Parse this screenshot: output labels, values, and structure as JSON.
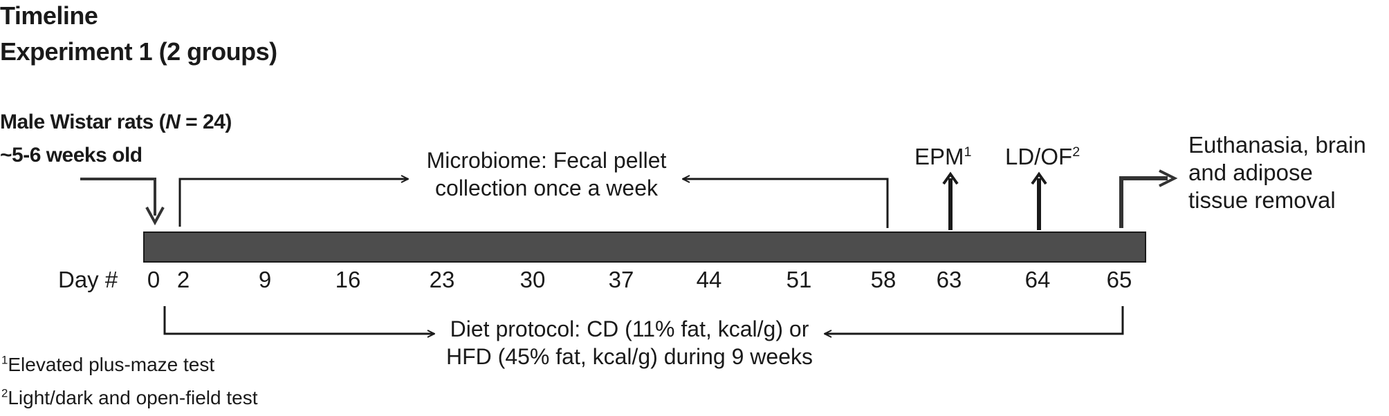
{
  "header": {
    "title": "Timeline",
    "subtitle": "Experiment 1 (2 groups)"
  },
  "subjects": {
    "line1_prefix": "Male Wistar rats (",
    "line1_n": "N",
    "line1_suffix": " = 24)",
    "line2": "~5-6 weeks old"
  },
  "microbiome": {
    "line1": "Microbiome: Fecal pellet",
    "line2": "collection once a week"
  },
  "tests": {
    "epm": {
      "label": "EPM",
      "ref": "1"
    },
    "ldof": {
      "label": "LD/OF",
      "ref": "2"
    }
  },
  "euthanasia": {
    "line1": "Euthanasia, brain",
    "line2": "and adipose",
    "line3": "tissue removal"
  },
  "axis": {
    "label": "Day #",
    "days": [
      "0",
      "2",
      "9",
      "16",
      "23",
      "30",
      "37",
      "44",
      "51",
      "58",
      "63",
      "64",
      "65"
    ]
  },
  "diet": {
    "line1": "Diet protocol: CD (11% fat, kcal/g) or",
    "line2": "HFD (45% fat, kcal/g) during 9 weeks"
  },
  "footnotes": [
    {
      "ref": "1",
      "text": "Elevated plus-maze test"
    },
    {
      "ref": "2",
      "text": "Light/dark and open-field test"
    }
  ],
  "colors": {
    "bar_fill": "#4d4d4d",
    "bar_stroke": "#1a1a1a",
    "arrow": "#1a1a1a"
  }
}
